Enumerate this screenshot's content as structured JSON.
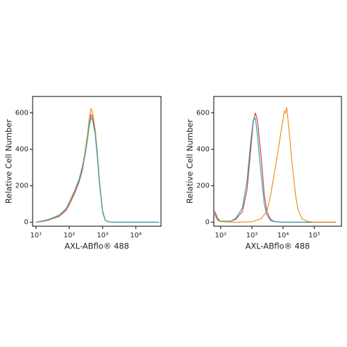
{
  "chart_data": [
    {
      "type": "line",
      "x_label": "AXL-ABflo® 488",
      "y_label": "Relative Cell Number",
      "xscale": "log",
      "xlim": [
        7.9,
        57000
      ],
      "ylim": [
        -22,
        690
      ],
      "xticks": [
        {
          "value": 10,
          "label": "10¹"
        },
        {
          "value": 100,
          "label": "10²"
        },
        {
          "value": 1000,
          "label": "10³"
        },
        {
          "value": 10000,
          "label": "10⁴"
        }
      ],
      "yticks": [
        0,
        200,
        400,
        600
      ],
      "series": [
        {
          "color": "#e03a3a",
          "x": [
            10,
            20,
            30,
            50,
            80,
            100,
            150,
            200,
            250,
            300,
            350,
            400,
            450,
            500,
            600,
            700,
            800,
            1000,
            1200,
            1500,
            2000,
            5000,
            50000
          ],
          "values": [
            0,
            8,
            18,
            32,
            65,
            95,
            165,
            225,
            290,
            380,
            460,
            540,
            590,
            580,
            500,
            370,
            230,
            60,
            10,
            2,
            0,
            0,
            0
          ]
        },
        {
          "color": "#f28c1e",
          "x": [
            10,
            20,
            30,
            50,
            80,
            100,
            150,
            200,
            250,
            300,
            350,
            400,
            450,
            500,
            600,
            700,
            800,
            1000,
            1200,
            1500,
            2000,
            5000,
            50000
          ],
          "values": [
            0,
            10,
            20,
            35,
            70,
            100,
            175,
            235,
            305,
            395,
            480,
            570,
            625,
            600,
            510,
            380,
            235,
            65,
            12,
            2,
            0,
            0,
            0
          ]
        },
        {
          "color": "#2aa8c4",
          "x": [
            10,
            20,
            30,
            50,
            80,
            100,
            150,
            200,
            250,
            300,
            350,
            400,
            450,
            500,
            600,
            700,
            800,
            1000,
            1200,
            1500,
            2000,
            5000,
            50000
          ],
          "values": [
            0,
            12,
            22,
            40,
            75,
            110,
            180,
            240,
            310,
            370,
            450,
            530,
            575,
            560,
            480,
            350,
            215,
            55,
            10,
            2,
            0,
            0,
            0
          ]
        }
      ]
    },
    {
      "type": "line",
      "x_label": "AXL-ABflo® 488",
      "y_label": "Relative Cell Number",
      "xscale": "log",
      "xlim": [
        60,
        740000
      ],
      "ylim": [
        -22,
        690
      ],
      "xticks": [
        {
          "value": 100,
          "label": "10²"
        },
        {
          "value": 1000,
          "label": "10³"
        },
        {
          "value": 10000,
          "label": "10⁴"
        },
        {
          "value": 100000,
          "label": "10⁵"
        }
      ],
      "yticks": [
        0,
        200,
        400,
        600
      ],
      "series": [
        {
          "color": "#e03a3a",
          "x": [
            65,
            80,
            100,
            200,
            300,
            500,
            700,
            900,
            1100,
            1300,
            1500,
            2000,
            2500,
            3000,
            4000,
            5000,
            10000,
            100000,
            500000
          ],
          "values": [
            60,
            20,
            5,
            5,
            15,
            60,
            180,
            380,
            550,
            600,
            560,
            350,
            150,
            60,
            15,
            5,
            0,
            0,
            0
          ]
        },
        {
          "color": "#2aa8c4",
          "x": [
            65,
            80,
            100,
            200,
            300,
            500,
            700,
            900,
            1100,
            1300,
            1500,
            2000,
            2500,
            3000,
            4000,
            5000,
            10000,
            100000,
            500000
          ],
          "values": [
            50,
            15,
            5,
            5,
            20,
            80,
            230,
            430,
            560,
            570,
            480,
            250,
            100,
            40,
            10,
            3,
            0,
            0,
            0
          ]
        },
        {
          "color": "#f28c1e",
          "x": [
            65,
            80,
            100,
            300,
            1000,
            2000,
            3000,
            4000,
            5000,
            7000,
            9000,
            11000,
            12000,
            13000,
            14000,
            16000,
            20000,
            25000,
            30000,
            40000,
            60000,
            100000,
            500000
          ],
          "values": [
            40,
            10,
            3,
            0,
            2,
            20,
            60,
            150,
            250,
            400,
            520,
            610,
            600,
            630,
            580,
            480,
            300,
            150,
            70,
            20,
            5,
            0,
            0
          ]
        }
      ]
    }
  ]
}
